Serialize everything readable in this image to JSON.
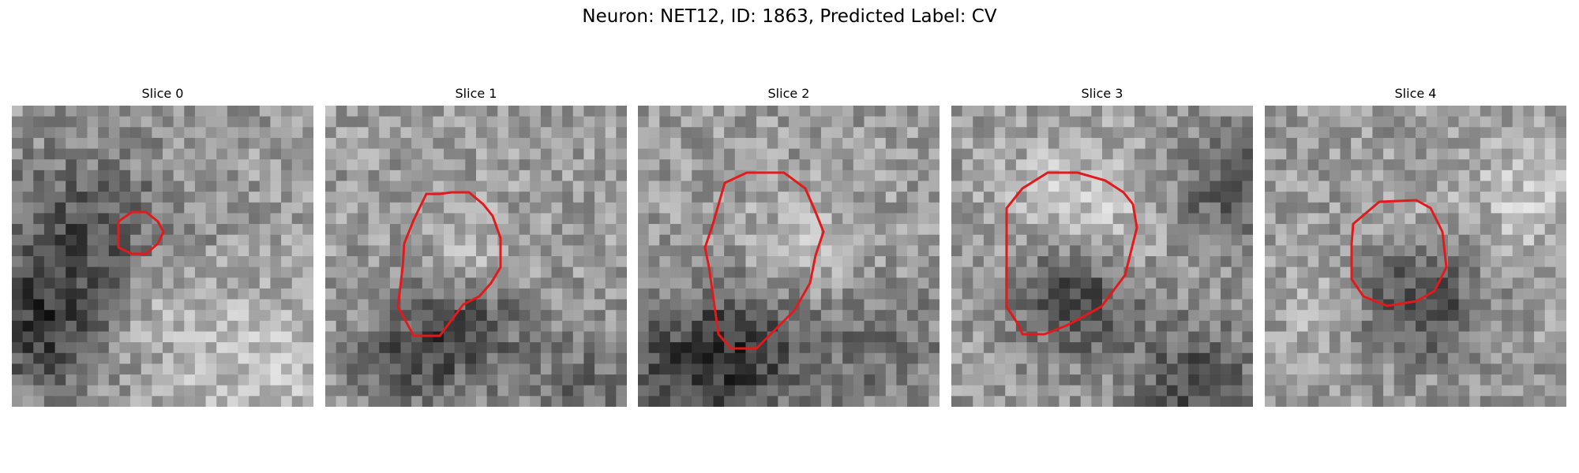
{
  "figure": {
    "title": "Neuron: NET12, ID: 1863, Predicted Label: CV"
  },
  "slices": [
    {
      "title": "Slice 0"
    },
    {
      "title": "Slice 1"
    },
    {
      "title": "Slice 2"
    },
    {
      "title": "Slice 3"
    },
    {
      "title": "Slice 4"
    }
  ],
  "colors": {
    "contour": "#e31a1c",
    "background": "#ffffff"
  }
}
